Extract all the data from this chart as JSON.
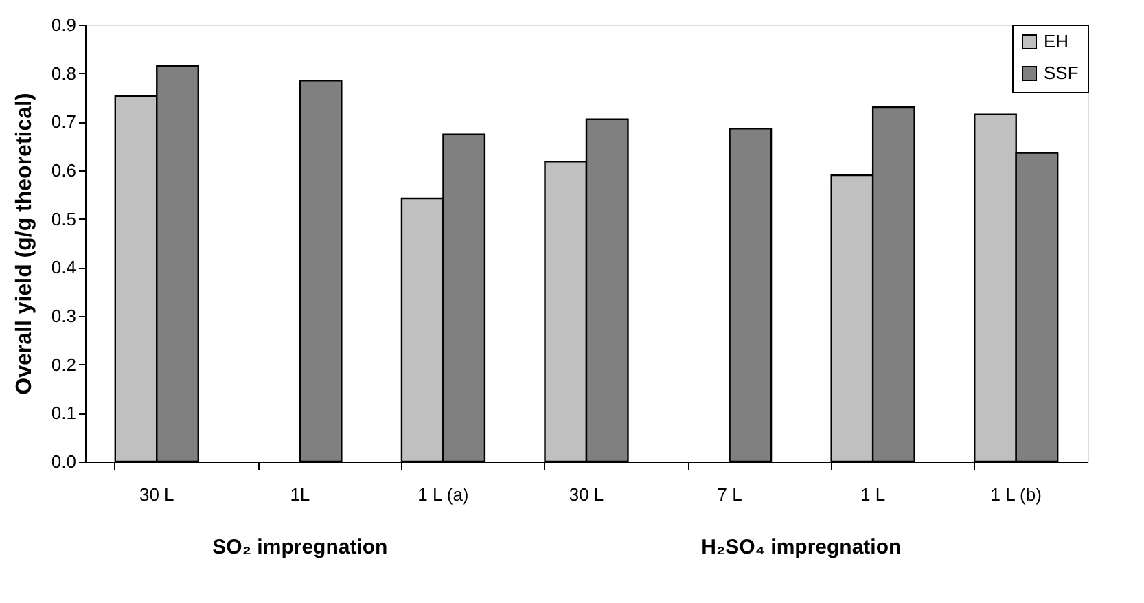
{
  "chart_data": {
    "type": "bar",
    "ylabel": "Overall yield (g/g theoretical)",
    "categories": [
      "30 L",
      "1L",
      "1 L (a)",
      "30 L",
      "7 L",
      "1 L",
      "1 L (b)"
    ],
    "series": [
      {
        "name": "EH",
        "color": "#c0c0c0",
        "values": [
          0.753,
          null,
          0.542,
          0.618,
          null,
          0.59,
          0.715
        ]
      },
      {
        "name": "SSF",
        "color": "#808080",
        "values": [
          0.815,
          0.785,
          0.674,
          0.705,
          0.686,
          0.73,
          0.636
        ]
      }
    ],
    "ylim": [
      0,
      0.9
    ],
    "yticks": [
      {
        "value": 0,
        "label": "0.0"
      },
      {
        "value": 0.1,
        "label": "0.1"
      },
      {
        "value": 0.2,
        "label": "0.2"
      },
      {
        "value": 0.3,
        "label": "0.3"
      },
      {
        "value": 0.4,
        "label": "0.4"
      },
      {
        "value": 0.5,
        "label": "0.5"
      },
      {
        "value": 0.6,
        "label": "0.6"
      },
      {
        "value": 0.7,
        "label": "0.7"
      },
      {
        "value": 0.8,
        "label": "0.8"
      },
      {
        "value": 0.9,
        "label": "0.9"
      }
    ],
    "annotations": [
      "SO₂ impregnation",
      "H₂SO₄ impregnation"
    ],
    "legend": "top right",
    "grid": false
  }
}
